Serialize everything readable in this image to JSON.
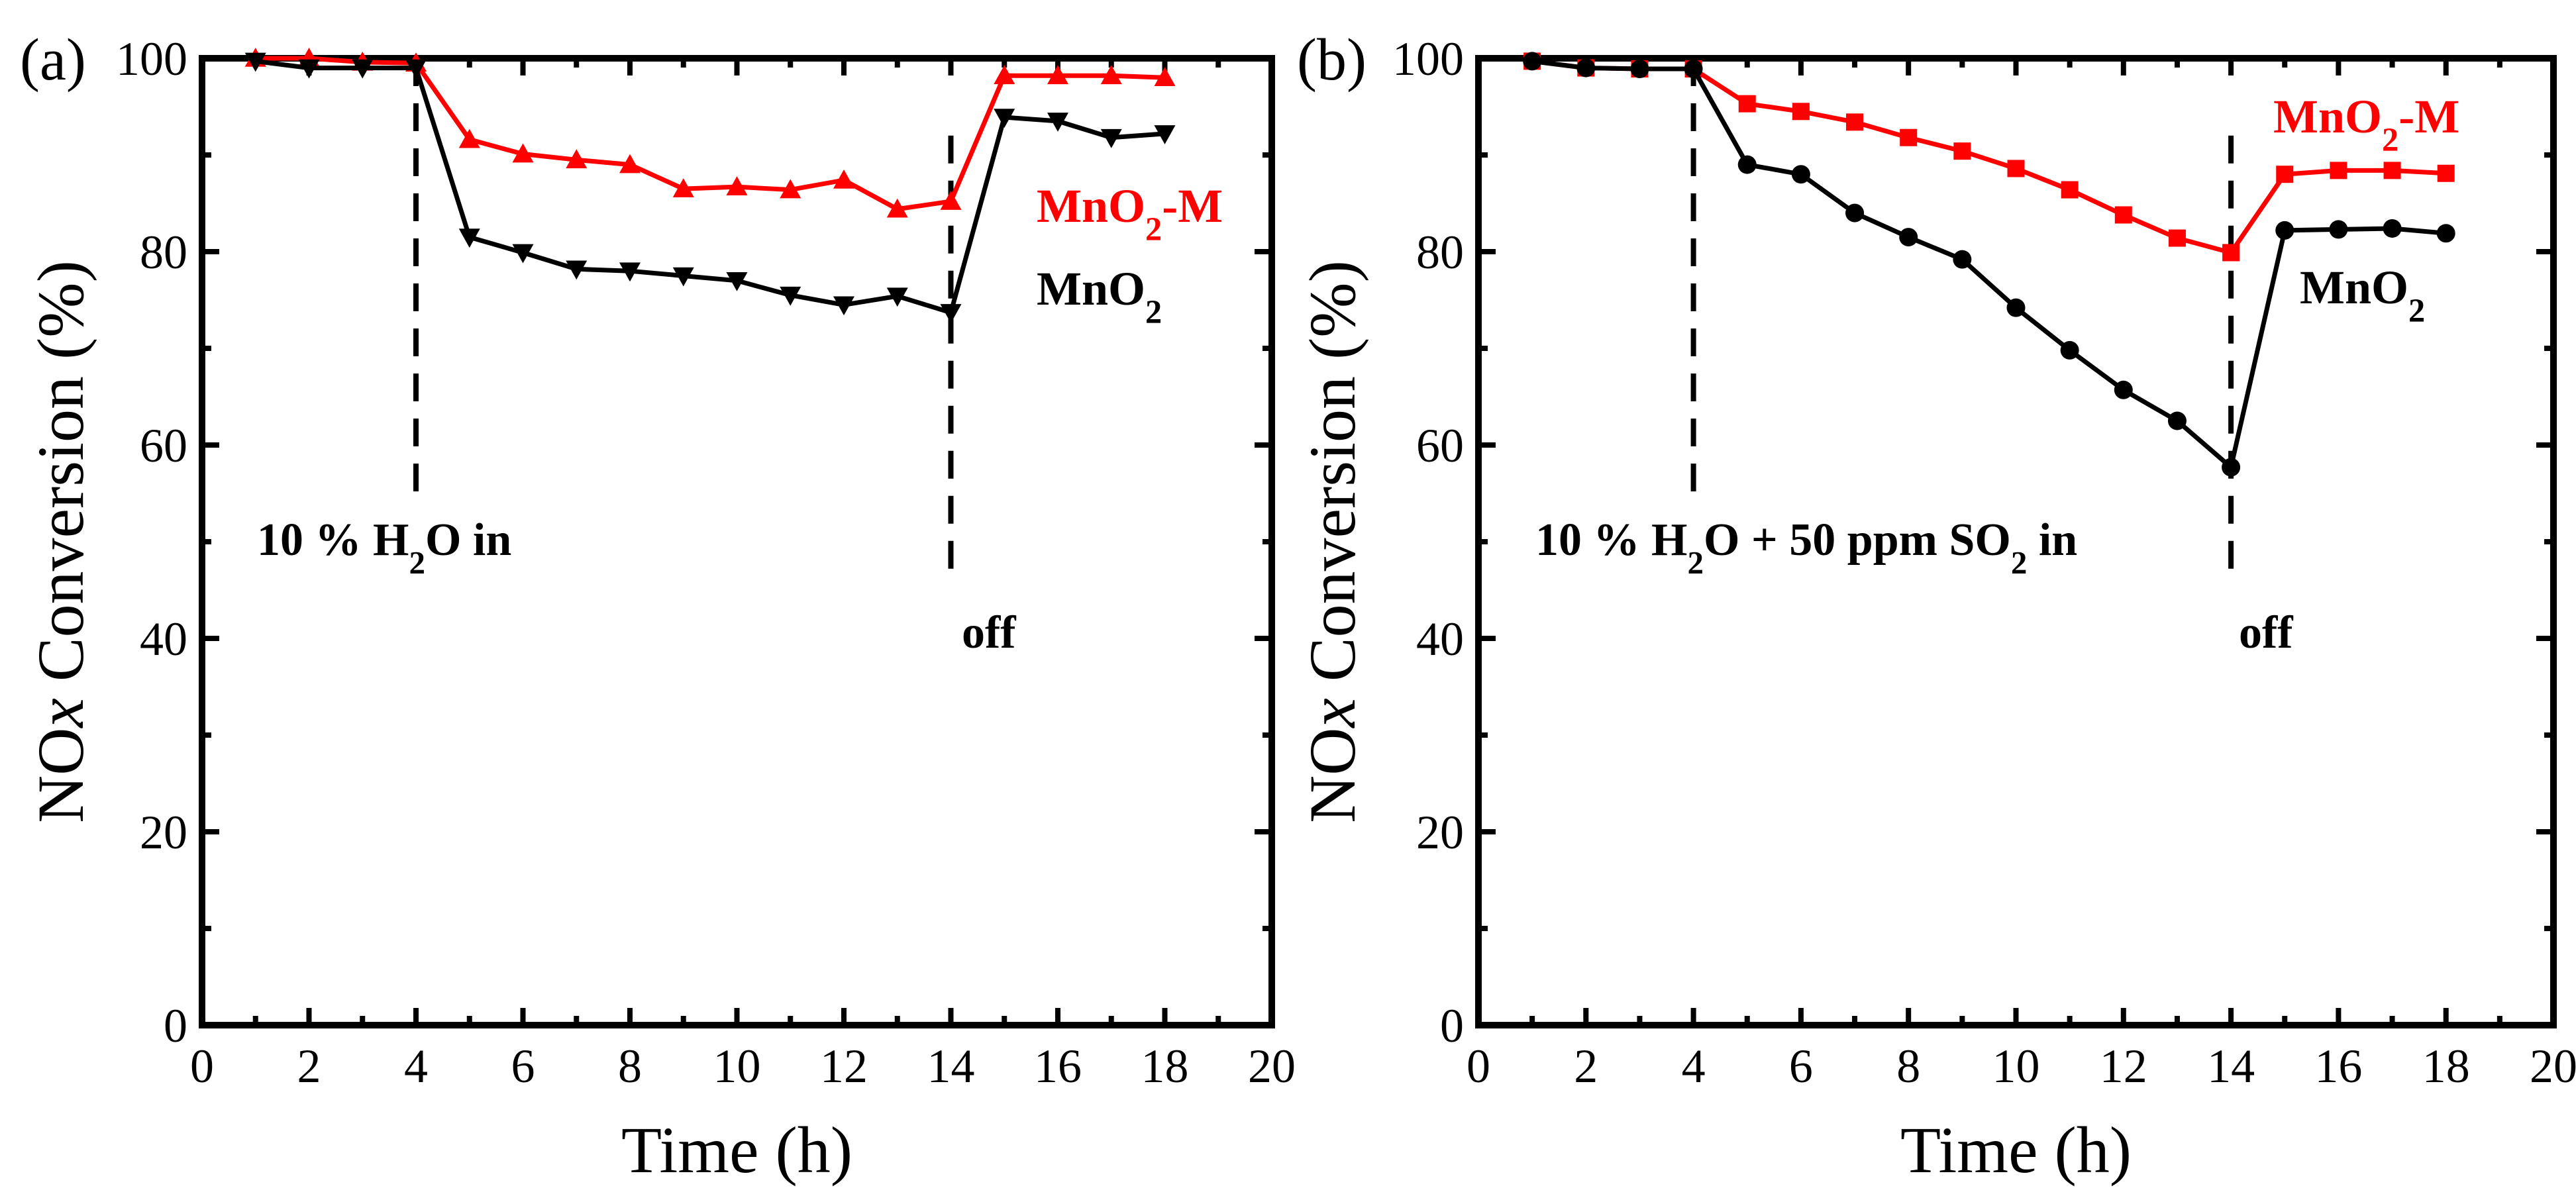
{
  "colors": {
    "mno2": "#000000",
    "mno2_m": "#ff0000",
    "axis": "#000000"
  },
  "chart_data": [
    {
      "type": "line",
      "panel_label": "(a)",
      "xlabel": "Time (h)",
      "ylabel_parts": [
        "NO",
        "x",
        " Conversion (%)"
      ],
      "xlim": [
        0,
        20
      ],
      "ylim": [
        0,
        100
      ],
      "xticks": [
        0,
        2,
        4,
        6,
        8,
        10,
        12,
        14,
        16,
        18,
        20
      ],
      "yticks": [
        0,
        20,
        40,
        60,
        80,
        100
      ],
      "x": [
        1,
        2,
        3,
        4,
        5,
        6,
        7,
        8,
        9,
        10,
        11,
        12,
        13,
        14,
        15,
        16,
        17,
        18
      ],
      "series": [
        {
          "name": "MnO2-M",
          "label_parts": [
            "MnO",
            "2",
            "-M"
          ],
          "marker": "triangle-up",
          "color": "#ff0000",
          "values": [
            100,
            100,
            99.6,
            99.5,
            91.6,
            90.1,
            89.5,
            89,
            86.5,
            86.7,
            86.4,
            87.4,
            84.4,
            85.2,
            98.2,
            98.2,
            98.2,
            98
          ]
        },
        {
          "name": "MnO2",
          "label_parts": [
            "MnO",
            "2"
          ],
          "marker": "triangle-down",
          "color": "#000000",
          "values": [
            99.7,
            99,
            99,
            99,
            81.5,
            79.9,
            78.2,
            78,
            77.5,
            77,
            75.5,
            74.5,
            75.4,
            73.7,
            93.9,
            93.5,
            91.8,
            92.2
          ]
        }
      ],
      "events": [
        {
          "x": 4,
          "text_parts": [
            "10 % H",
            "2",
            "O  in"
          ]
        },
        {
          "x": 14,
          "text_parts": [
            "off"
          ]
        }
      ]
    },
    {
      "type": "line",
      "panel_label": "(b)",
      "xlabel": "Time (h)",
      "ylabel_parts": [
        "NO",
        "x",
        " Conversion  (%)"
      ],
      "xlim": [
        0,
        20
      ],
      "ylim": [
        0,
        100
      ],
      "xticks": [
        0,
        2,
        4,
        6,
        8,
        10,
        12,
        14,
        16,
        18,
        20
      ],
      "yticks": [
        0,
        20,
        40,
        60,
        80,
        100
      ],
      "x": [
        1,
        2,
        3,
        4,
        5,
        6,
        7,
        8,
        9,
        10,
        11,
        12,
        13,
        14,
        15,
        16,
        17,
        18
      ],
      "series": [
        {
          "name": "MnO2-M",
          "label_parts": [
            "MnO",
            "2",
            "-M"
          ],
          "marker": "square",
          "color": "#ff0000",
          "values": [
            99.7,
            99,
            98.9,
            98.9,
            95.3,
            94.5,
            93.4,
            91.8,
            90.4,
            88.6,
            86.4,
            83.8,
            81.4,
            79.9,
            88,
            88.4,
            88.4,
            88.1
          ]
        },
        {
          "name": "MnO2",
          "label_parts": [
            "MnO",
            "2"
          ],
          "marker": "circle",
          "color": "#000000",
          "values": [
            99.7,
            99,
            98.9,
            98.9,
            89,
            88,
            84,
            81.5,
            79.2,
            74.2,
            69.8,
            65.7,
            62.5,
            57.7,
            82.2,
            82.3,
            82.4,
            81.9
          ]
        }
      ],
      "events": [
        {
          "x": 4,
          "text_parts": [
            "10 % H",
            "2",
            "O + 50 ppm SO",
            "2",
            " in"
          ]
        },
        {
          "x": 14,
          "text_parts": [
            "off"
          ]
        }
      ]
    }
  ]
}
